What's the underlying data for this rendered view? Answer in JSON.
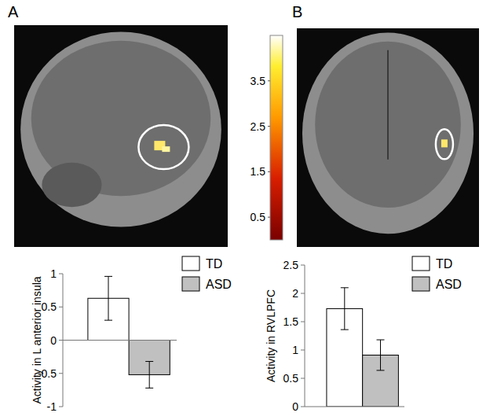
{
  "chart_data": [
    {
      "type": "bar",
      "y_label": "Activity in L anterior insula",
      "categories": [
        null
      ],
      "series": [
        {
          "name": "TD",
          "color": "#ffffff",
          "values": [
            0.63
          ],
          "errors": [
            0.33
          ]
        },
        {
          "name": "ASD",
          "color": "#c0c0c0",
          "values": [
            -0.52
          ],
          "errors": [
            0.2
          ]
        }
      ],
      "ylim": [
        -1,
        1
      ],
      "yticks": [
        -1,
        -0.5,
        0,
        0.5,
        1
      ],
      "tick_labels": "y",
      "legend": "upper-right",
      "grid": false
    },
    {
      "type": "bar",
      "y_label": "Activity in RVLPFC",
      "categories": [
        null
      ],
      "series": [
        {
          "name": "TD",
          "color": "#ffffff",
          "values": [
            1.73
          ],
          "errors": [
            0.37
          ]
        },
        {
          "name": "ASD",
          "color": "#c0c0c0",
          "values": [
            0.91
          ],
          "errors": [
            0.27
          ]
        }
      ],
      "ylim": [
        0,
        2.5
      ],
      "yticks": [
        0,
        0.5,
        1,
        1.5,
        2,
        2.5
      ],
      "tick_labels": "y",
      "legend": "upper-right",
      "grid": false
    }
  ],
  "figure": {
    "panel_labels": [
      "A",
      "B"
    ],
    "colorbar": {
      "range": [
        0,
        4.5
      ],
      "ticks": [
        0.5,
        1.5,
        2.5,
        3.5
      ]
    }
  }
}
